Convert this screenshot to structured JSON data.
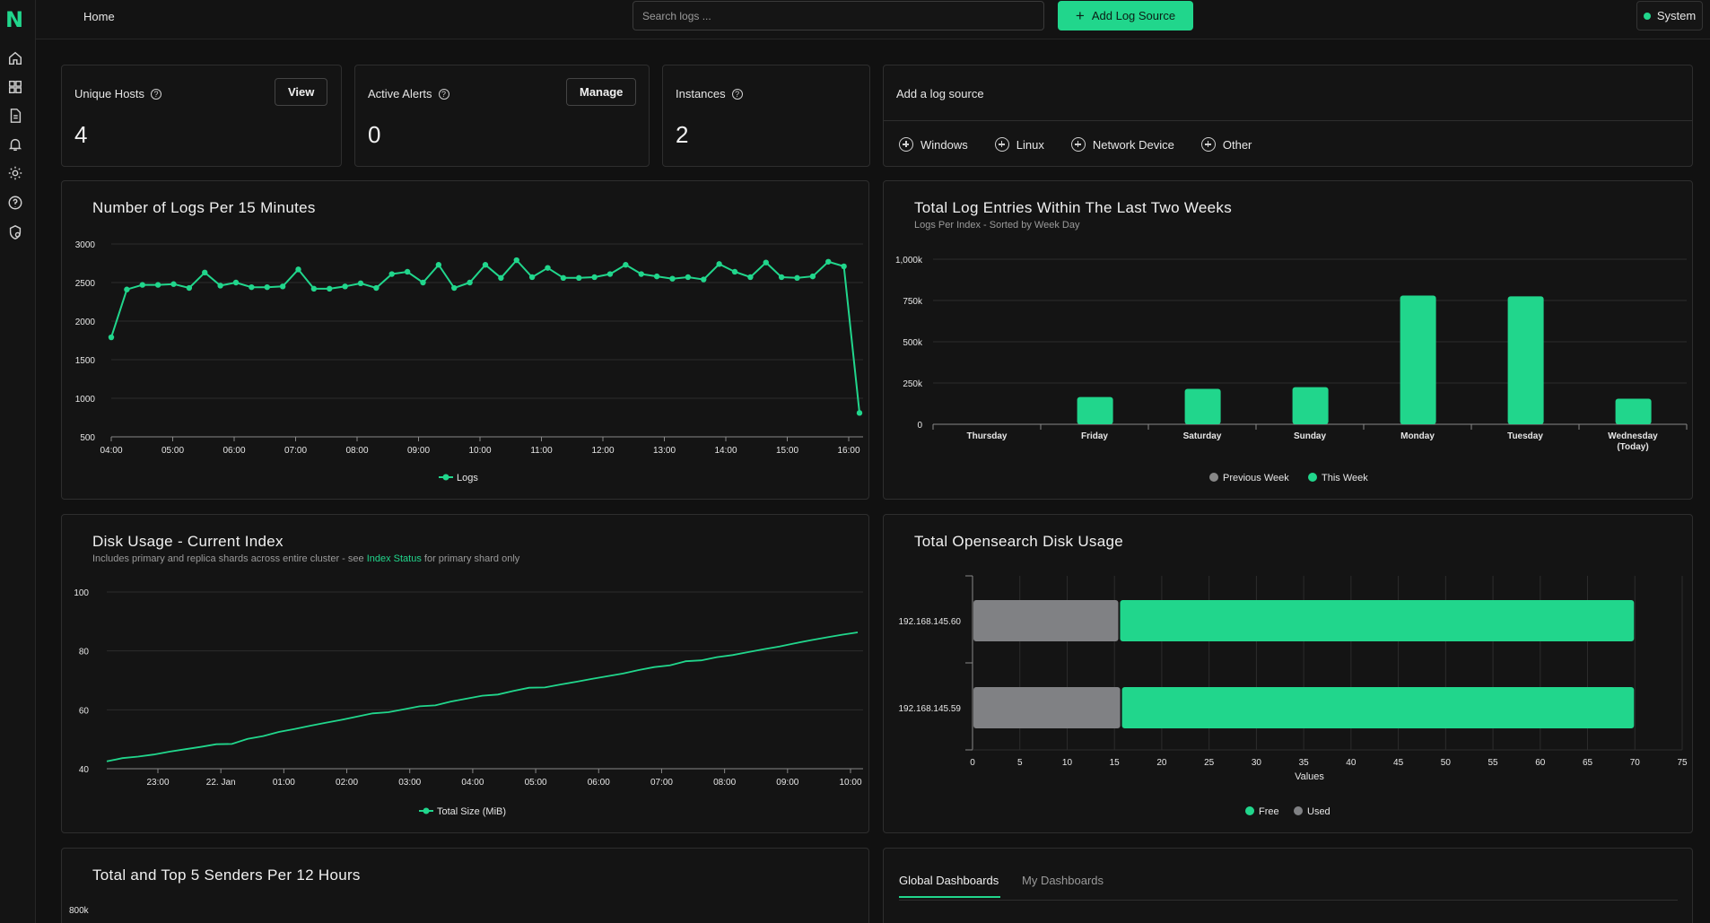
{
  "app": {
    "logo": "N"
  },
  "topbar": {
    "breadcrumb": "Home",
    "search_placeholder": "Search logs ...",
    "add_button": "Add Log Source",
    "system_label": "System"
  },
  "sidebar": {
    "items": [
      "home-icon",
      "dashboard-icon",
      "document-icon",
      "bell-icon",
      "gear-icon",
      "help-icon",
      "shield-icon"
    ]
  },
  "stats": {
    "unique_hosts": {
      "label": "Unique Hosts",
      "value": "4",
      "button": "View"
    },
    "active_alerts": {
      "label": "Active Alerts",
      "value": "0",
      "button": "Manage"
    },
    "instances": {
      "label": "Instances",
      "value": "2"
    }
  },
  "log_source": {
    "title": "Add a log source",
    "options": [
      "Windows",
      "Linux",
      "Network Device",
      "Other"
    ]
  },
  "charts": {
    "logs_per_15": {
      "title": "Number of Logs Per 15 Minutes",
      "chart_data": {
        "type": "line",
        "yticks": [
          3000,
          2500,
          2000,
          1500,
          1000,
          500
        ],
        "ylim": [
          500,
          3000
        ],
        "xticks": [
          "04:00",
          "05:00",
          "06:00",
          "07:00",
          "08:00",
          "09:00",
          "10:00",
          "11:00",
          "12:00",
          "13:00",
          "14:00",
          "15:00",
          "16:00"
        ],
        "series": [
          {
            "name": "Logs",
            "values": [
              1790,
              2410,
              2470,
              2470,
              2480,
              2430,
              2630,
              2460,
              2500,
              2440,
              2440,
              2450,
              2670,
              2420,
              2420,
              2450,
              2490,
              2430,
              2610,
              2640,
              2500,
              2730,
              2430,
              2500,
              2730,
              2560,
              2790,
              2570,
              2690,
              2560,
              2560,
              2570,
              2610,
              2730,
              2610,
              2580,
              2550,
              2570,
              2540,
              2740,
              2640,
              2570,
              2760,
              2570,
              2560,
              2580,
              2770,
              2710,
              810
            ]
          }
        ]
      }
    },
    "two_weeks": {
      "title": "Total Log Entries Within The Last Two Weeks",
      "subtitle": "Logs Per Index - Sorted by Week Day",
      "chart_data": {
        "type": "bar",
        "yticks": [
          "1,000k",
          "750k",
          "500k",
          "250k",
          "0"
        ],
        "ylim": [
          0,
          1000000
        ],
        "categories": [
          "Thursday",
          "Friday",
          "Saturday",
          "Sunday",
          "Monday",
          "Tuesday",
          "Wednesday (Today)"
        ],
        "series": [
          {
            "name": "Previous Week",
            "color": "#888888",
            "values": [
              0,
              0,
              0,
              0,
              0,
              0,
              0
            ]
          },
          {
            "name": "This Week",
            "color": "#21d68c",
            "values": [
              0,
              165000,
              215000,
              225000,
              780000,
              775000,
              155000
            ]
          }
        ],
        "legend": "bottom"
      }
    },
    "disk_usage": {
      "title": "Disk Usage - Current Index",
      "subtitle_pre": "Includes primary and replica shards across entire cluster - see ",
      "subtitle_link": "Index Status",
      "subtitle_post": " for primary shard only",
      "chart_data": {
        "type": "line",
        "yticks": [
          100,
          80,
          60,
          40
        ],
        "ylim": [
          40,
          100
        ],
        "xticks": [
          "23:00",
          "22. Jan",
          "01:00",
          "02:00",
          "03:00",
          "04:00",
          "05:00",
          "06:00",
          "07:00",
          "08:00",
          "09:00",
          "10:00"
        ],
        "series": [
          {
            "name": "Total Size (MiB)",
            "values": [
              42.5,
              43.6,
              44.1,
              44.8,
              45.8,
              46.6,
              47.4,
              48.3,
              48.4,
              50.1,
              51.1,
              52.5,
              53.5,
              54.6,
              55.6,
              56.6,
              57.7,
              58.8,
              59.2,
              60.2,
              61.2,
              61.5,
              62.8,
              63.8,
              64.8,
              65.2,
              66.4,
              67.5,
              67.6,
              68.6,
              69.5,
              70.5,
              71.4,
              72.3,
              73.5,
              74.5,
              75.1,
              76.5,
              76.8,
              77.9,
              78.6,
              79.6,
              80.6,
              81.5,
              82.6,
              83.6,
              84.6,
              85.5,
              86.3
            ]
          }
        ]
      }
    },
    "opensearch_disk": {
      "title": "Total Opensearch Disk Usage",
      "chart_data": {
        "type": "bar",
        "orientation": "horizontal",
        "stacked": true,
        "categories": [
          "192.168.145.60",
          "192.168.145.59"
        ],
        "xticks": [
          "0",
          "5",
          "10",
          "15",
          "20",
          "25",
          "30",
          "35",
          "40",
          "45",
          "50",
          "55",
          "60",
          "65",
          "70",
          "75"
        ],
        "xlim": [
          0,
          75
        ],
        "xlabel": "Values",
        "series": [
          {
            "name": "Used",
            "color": "#808184",
            "values": [
              15.5,
              15.7
            ]
          },
          {
            "name": "Free",
            "color": "#21d68c",
            "values": [
              54.5,
              54.3
            ]
          }
        ],
        "legend_order": [
          "Free",
          "Used"
        ],
        "legend": "bottom"
      }
    },
    "top_senders": {
      "title": "Total and Top 5 Senders Per 12 Hours",
      "first_tick": "800k"
    }
  },
  "dashboards": {
    "tabs": [
      "Global Dashboards",
      "My Dashboards"
    ],
    "active_tab": "Global Dashboards"
  },
  "colors": {
    "accent": "#21d68c",
    "used": "#808184",
    "bg": "#111111",
    "card": "#141414"
  }
}
